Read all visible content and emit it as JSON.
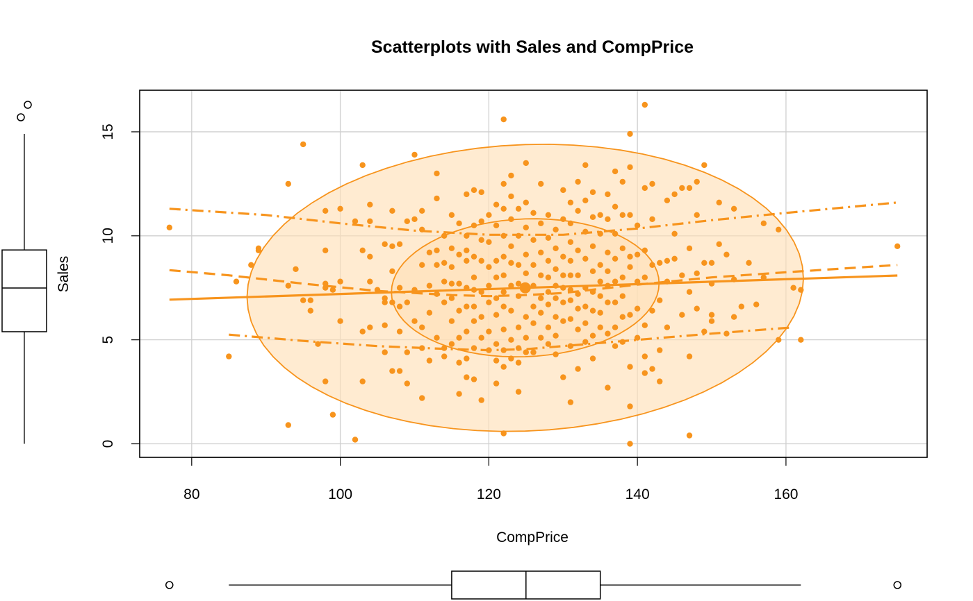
{
  "chart_data": {
    "type": "scatter",
    "title": "Scatterplots with Sales and CompPrice",
    "xlabel": "CompPrice",
    "ylabel": "Sales",
    "xlim": [
      73,
      179
    ],
    "ylim": [
      -0.65,
      17
    ],
    "x_ticks": [
      80,
      100,
      120,
      140,
      160
    ],
    "y_ticks": [
      0,
      5,
      10,
      15
    ],
    "grid": true,
    "accent_color": "#F7941D",
    "fill_color": "#FFE0B8",
    "points": [
      [
        77,
        10.4
      ],
      [
        85,
        4.2
      ],
      [
        86,
        7.8
      ],
      [
        88,
        8.6
      ],
      [
        89,
        9.4
      ],
      [
        89,
        9.3
      ],
      [
        93,
        12.5
      ],
      [
        93,
        7.6
      ],
      [
        93,
        0.9
      ],
      [
        94,
        8.4
      ],
      [
        95,
        14.4
      ],
      [
        95,
        6.9
      ],
      [
        96,
        6.9
      ],
      [
        96,
        6.4
      ],
      [
        97,
        4.8
      ],
      [
        98,
        11.2
      ],
      [
        98,
        9.3
      ],
      [
        98,
        7.7
      ],
      [
        98,
        7.5
      ],
      [
        98,
        3.0
      ],
      [
        99,
        7.4
      ],
      [
        99,
        1.4
      ],
      [
        100,
        11.3
      ],
      [
        100,
        7.8
      ],
      [
        100,
        5.9
      ],
      [
        102,
        10.7
      ],
      [
        102,
        0.2
      ],
      [
        103,
        13.4
      ],
      [
        103,
        9.3
      ],
      [
        103,
        3.0
      ],
      [
        103,
        5.4
      ],
      [
        104,
        11.5
      ],
      [
        104,
        10.7
      ],
      [
        104,
        9.0
      ],
      [
        104,
        7.8
      ],
      [
        104,
        5.6
      ],
      [
        105,
        7.4
      ],
      [
        106,
        9.6
      ],
      [
        106,
        7.0
      ],
      [
        106,
        6.8
      ],
      [
        106,
        5.7
      ],
      [
        106,
        4.4
      ],
      [
        107,
        11.2
      ],
      [
        107,
        9.5
      ],
      [
        107,
        8.3
      ],
      [
        107,
        6.8
      ],
      [
        107,
        3.5
      ],
      [
        108,
        9.6
      ],
      [
        108,
        7.5
      ],
      [
        108,
        6.6
      ],
      [
        108,
        5.4
      ],
      [
        108,
        3.5
      ],
      [
        109,
        10.7
      ],
      [
        109,
        6.8
      ],
      [
        109,
        4.4
      ],
      [
        109,
        2.9
      ],
      [
        110,
        13.9
      ],
      [
        110,
        10.8
      ],
      [
        110,
        7.4
      ],
      [
        110,
        5.9
      ],
      [
        111,
        11.2
      ],
      [
        111,
        10.3
      ],
      [
        111,
        8.6
      ],
      [
        111,
        5.6
      ],
      [
        111,
        4.6
      ],
      [
        111,
        2.2
      ],
      [
        112,
        9.2
      ],
      [
        112,
        7.6
      ],
      [
        112,
        6.3
      ],
      [
        112,
        4.0
      ],
      [
        113,
        13.0
      ],
      [
        113,
        11.8
      ],
      [
        113,
        9.3
      ],
      [
        113,
        8.6
      ],
      [
        113,
        7.2
      ],
      [
        113,
        5.1
      ],
      [
        114,
        10.0
      ],
      [
        114,
        8.7
      ],
      [
        114,
        7.8
      ],
      [
        114,
        6.8
      ],
      [
        114,
        4.6
      ],
      [
        114,
        4.2
      ],
      [
        115,
        11.0
      ],
      [
        115,
        9.4
      ],
      [
        115,
        8.5
      ],
      [
        115,
        7.7
      ],
      [
        115,
        7.0
      ],
      [
        115,
        5.9
      ],
      [
        115,
        4.8
      ],
      [
        116,
        10.6
      ],
      [
        116,
        9.1
      ],
      [
        116,
        7.7
      ],
      [
        116,
        6.4
      ],
      [
        116,
        5.1
      ],
      [
        116,
        3.9
      ],
      [
        116,
        2.4
      ],
      [
        117,
        12.0
      ],
      [
        117,
        10.0
      ],
      [
        117,
        9.3
      ],
      [
        117,
        8.8
      ],
      [
        117,
        7.5
      ],
      [
        117,
        6.6
      ],
      [
        117,
        5.4
      ],
      [
        117,
        4.1
      ],
      [
        117,
        3.2
      ],
      [
        118,
        12.2
      ],
      [
        118,
        10.5
      ],
      [
        118,
        9.0
      ],
      [
        118,
        8.0
      ],
      [
        118,
        7.4
      ],
      [
        118,
        6.6
      ],
      [
        118,
        5.9
      ],
      [
        118,
        4.6
      ],
      [
        118,
        3.1
      ],
      [
        119,
        12.1
      ],
      [
        119,
        10.7
      ],
      [
        119,
        9.8
      ],
      [
        119,
        8.8
      ],
      [
        119,
        7.3
      ],
      [
        119,
        6.1
      ],
      [
        119,
        5.1
      ],
      [
        119,
        2.1
      ],
      [
        120,
        11.0
      ],
      [
        120,
        9.7
      ],
      [
        120,
        8.5
      ],
      [
        120,
        7.6
      ],
      [
        120,
        6.8
      ],
      [
        120,
        5.4
      ],
      [
        120,
        4.5
      ],
      [
        121,
        11.5
      ],
      [
        121,
        10.5
      ],
      [
        121,
        8.8
      ],
      [
        121,
        8.0
      ],
      [
        121,
        7.0
      ],
      [
        121,
        6.2
      ],
      [
        121,
        4.8
      ],
      [
        121,
        4.0
      ],
      [
        121,
        2.9
      ],
      [
        122,
        15.6
      ],
      [
        122,
        12.5
      ],
      [
        122,
        11.3
      ],
      [
        122,
        10.0
      ],
      [
        122,
        9.0
      ],
      [
        122,
        8.1
      ],
      [
        122,
        7.3
      ],
      [
        122,
        6.6
      ],
      [
        122,
        5.5
      ],
      [
        122,
        4.5
      ],
      [
        122,
        3.7
      ],
      [
        122,
        0.5
      ],
      [
        123,
        12.9
      ],
      [
        123,
        11.9
      ],
      [
        123,
        10.8
      ],
      [
        123,
        9.5
      ],
      [
        123,
        8.7
      ],
      [
        123,
        7.6
      ],
      [
        123,
        6.4
      ],
      [
        123,
        5.0
      ],
      [
        123,
        4.1
      ],
      [
        124,
        11.3
      ],
      [
        124,
        10.0
      ],
      [
        124,
        8.6
      ],
      [
        124,
        7.7
      ],
      [
        124,
        7.1
      ],
      [
        124,
        5.6
      ],
      [
        124,
        4.6
      ],
      [
        124,
        3.9
      ],
      [
        124,
        2.5
      ],
      [
        125,
        13.5
      ],
      [
        125,
        11.6
      ],
      [
        125,
        10.4
      ],
      [
        125,
        9.1
      ],
      [
        125,
        8.2
      ],
      [
        125,
        7.4
      ],
      [
        125,
        7.4
      ],
      [
        125,
        6.1
      ],
      [
        125,
        5.1
      ],
      [
        125,
        4.4
      ],
      [
        126,
        11.1
      ],
      [
        126,
        9.8
      ],
      [
        126,
        8.6
      ],
      [
        126,
        7.6
      ],
      [
        126,
        6.6
      ],
      [
        126,
        5.8
      ],
      [
        126,
        4.4
      ],
      [
        127,
        12.5
      ],
      [
        127,
        10.6
      ],
      [
        127,
        9.2
      ],
      [
        127,
        8.1
      ],
      [
        127,
        7.0
      ],
      [
        127,
        6.3
      ],
      [
        127,
        5.1
      ],
      [
        128,
        11.0
      ],
      [
        128,
        9.9
      ],
      [
        128,
        8.8
      ],
      [
        128,
        8.0
      ],
      [
        128,
        7.3
      ],
      [
        128,
        6.7
      ],
      [
        128,
        5.6
      ],
      [
        128,
        4.8
      ],
      [
        129,
        10.3
      ],
      [
        129,
        9.4
      ],
      [
        129,
        8.4
      ],
      [
        129,
        7.6
      ],
      [
        129,
        7.0
      ],
      [
        129,
        6.1
      ],
      [
        129,
        5.2
      ],
      [
        129,
        4.3
      ],
      [
        130,
        12.2
      ],
      [
        130,
        10.8
      ],
      [
        130,
        9.0
      ],
      [
        130,
        8.1
      ],
      [
        130,
        7.5
      ],
      [
        130,
        6.8
      ],
      [
        130,
        5.9
      ],
      [
        130,
        3.2
      ],
      [
        131,
        11.6
      ],
      [
        131,
        10.6
      ],
      [
        131,
        9.7
      ],
      [
        131,
        8.8
      ],
      [
        131,
        8.1
      ],
      [
        131,
        7.4
      ],
      [
        131,
        6.9
      ],
      [
        131,
        6.0
      ],
      [
        131,
        4.7
      ],
      [
        131,
        2.0
      ],
      [
        132,
        12.6
      ],
      [
        132,
        11.2
      ],
      [
        132,
        9.3
      ],
      [
        132,
        8.1
      ],
      [
        132,
        7.2
      ],
      [
        132,
        6.5
      ],
      [
        132,
        5.5
      ],
      [
        132,
        3.6
      ],
      [
        133,
        13.4
      ],
      [
        133,
        11.7
      ],
      [
        133,
        10.2
      ],
      [
        133,
        8.9
      ],
      [
        133,
        7.5
      ],
      [
        133,
        6.6
      ],
      [
        133,
        5.8
      ],
      [
        133,
        4.9
      ],
      [
        134,
        12.1
      ],
      [
        134,
        10.9
      ],
      [
        134,
        9.5
      ],
      [
        134,
        8.3
      ],
      [
        134,
        7.3
      ],
      [
        134,
        6.4
      ],
      [
        134,
        5.2
      ],
      [
        134,
        4.1
      ],
      [
        135,
        11.0
      ],
      [
        135,
        10.1
      ],
      [
        135,
        8.6
      ],
      [
        135,
        7.8
      ],
      [
        135,
        7.1
      ],
      [
        135,
        6.3
      ],
      [
        135,
        5.6
      ],
      [
        136,
        12.0
      ],
      [
        136,
        10.8
      ],
      [
        136,
        9.2
      ],
      [
        136,
        8.3
      ],
      [
        136,
        7.6
      ],
      [
        136,
        6.8
      ],
      [
        136,
        5.3
      ],
      [
        136,
        2.7
      ],
      [
        137,
        13.1
      ],
      [
        137,
        11.4
      ],
      [
        137,
        10.1
      ],
      [
        137,
        8.9
      ],
      [
        137,
        7.8
      ],
      [
        137,
        6.8
      ],
      [
        137,
        5.6
      ],
      [
        137,
        4.7
      ],
      [
        138,
        12.6
      ],
      [
        138,
        11.0
      ],
      [
        138,
        9.4
      ],
      [
        138,
        8.0
      ],
      [
        138,
        7.1
      ],
      [
        138,
        6.1
      ],
      [
        138,
        4.9
      ],
      [
        139,
        14.9
      ],
      [
        139,
        13.3
      ],
      [
        139,
        11.0
      ],
      [
        139,
        9.0
      ],
      [
        139,
        8.5
      ],
      [
        139,
        6.2
      ],
      [
        139,
        3.7
      ],
      [
        139,
        1.8
      ],
      [
        139,
        0.0
      ],
      [
        140,
        10.5
      ],
      [
        140,
        9.1
      ],
      [
        140,
        7.8
      ],
      [
        140,
        6.5
      ],
      [
        140,
        5.1
      ],
      [
        141,
        16.3
      ],
      [
        141,
        12.3
      ],
      [
        141,
        9.3
      ],
      [
        141,
        8.0
      ],
      [
        141,
        5.7
      ],
      [
        141,
        4.2
      ],
      [
        141,
        3.4
      ],
      [
        142,
        12.5
      ],
      [
        142,
        10.8
      ],
      [
        142,
        8.6
      ],
      [
        142,
        6.4
      ],
      [
        142,
        3.6
      ],
      [
        143,
        8.7
      ],
      [
        143,
        6.9
      ],
      [
        143,
        4.5
      ],
      [
        143,
        3.0
      ],
      [
        144,
        11.7
      ],
      [
        144,
        8.8
      ],
      [
        144,
        7.8
      ],
      [
        144,
        5.6
      ],
      [
        145,
        12.0
      ],
      [
        145,
        10.1
      ],
      [
        145,
        8.9
      ],
      [
        146,
        12.3
      ],
      [
        146,
        8.1
      ],
      [
        146,
        6.2
      ],
      [
        147,
        12.3
      ],
      [
        147,
        9.4
      ],
      [
        147,
        7.3
      ],
      [
        147,
        4.2
      ],
      [
        147,
        0.4
      ],
      [
        148,
        12.6
      ],
      [
        148,
        11.0
      ],
      [
        148,
        8.2
      ],
      [
        148,
        6.5
      ],
      [
        149,
        13.4
      ],
      [
        149,
        8.7
      ],
      [
        149,
        5.4
      ],
      [
        150,
        8.7
      ],
      [
        150,
        7.7
      ],
      [
        150,
        6.2
      ],
      [
        150,
        5.9
      ],
      [
        151,
        11.6
      ],
      [
        151,
        9.6
      ],
      [
        152,
        9.1
      ],
      [
        152,
        5.3
      ],
      [
        153,
        11.3
      ],
      [
        153,
        7.9
      ],
      [
        153,
        6.1
      ],
      [
        154,
        6.6
      ],
      [
        155,
        8.7
      ],
      [
        156,
        6.7
      ],
      [
        157,
        10.6
      ],
      [
        157,
        8.0
      ],
      [
        159,
        10.3
      ],
      [
        159,
        5.0
      ],
      [
        161,
        7.5
      ],
      [
        162,
        7.4
      ],
      [
        162,
        5.0
      ],
      [
        175,
        9.5
      ]
    ],
    "regression_line": {
      "x": [
        77,
        175
      ],
      "y": [
        6.93,
        8.09
      ]
    },
    "smoother": {
      "x": [
        77,
        85,
        95,
        105,
        115,
        120,
        125,
        130,
        135,
        140,
        150,
        160,
        175
      ],
      "y": [
        8.35,
        8.1,
        7.7,
        7.35,
        7.15,
        7.1,
        7.15,
        7.25,
        7.45,
        7.65,
        8.0,
        8.25,
        8.6
      ]
    },
    "spread_upper": {
      "x": [
        77,
        90,
        100,
        110,
        120,
        130,
        140,
        150,
        160,
        175
      ],
      "y": [
        11.3,
        11.0,
        10.6,
        10.25,
        10.05,
        10.05,
        10.35,
        10.75,
        11.1,
        11.6
      ]
    },
    "spread_lower": {
      "x": [
        85,
        95,
        105,
        115,
        120,
        125,
        130,
        140,
        150,
        161
      ],
      "y": [
        5.25,
        4.95,
        4.7,
        4.55,
        4.5,
        4.55,
        4.7,
        5.0,
        5.3,
        5.6
      ]
    },
    "ellipses": {
      "center": [
        124.9,
        7.5
      ],
      "levels": [
        0.5,
        0.95
      ],
      "sd_x": 15.3,
      "sd_y": 2.82,
      "correlation": 0.064
    },
    "x_boxplot": {
      "min": 85,
      "q1": 115,
      "median": 125,
      "q3": 135,
      "max": 162,
      "outliers": [
        77,
        175
      ]
    },
    "y_boxplot": {
      "min": 0,
      "q1": 5.39,
      "median": 7.49,
      "q3": 9.32,
      "max": 14.9,
      "outliers": [
        15.63,
        16.27
      ]
    }
  }
}
